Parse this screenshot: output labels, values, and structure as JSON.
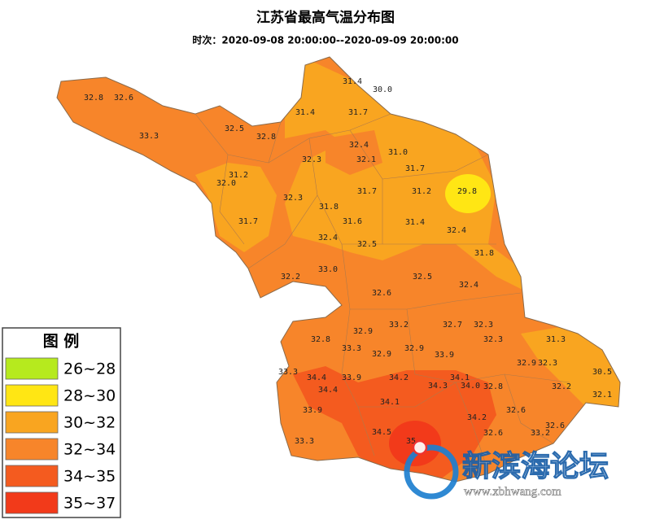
{
  "title": "江苏省最高气温分布图",
  "subtitle": "时次：2020-09-08 20:00:00--2020-09-09 20:00:00",
  "legend": {
    "title": "图 例",
    "items": [
      {
        "label": "26~28",
        "color": "#b6ea1e"
      },
      {
        "label": "28~30",
        "color": "#ffe614"
      },
      {
        "label": "30~32",
        "color": "#f9a520"
      },
      {
        "label": "32~34",
        "color": "#f7852a"
      },
      {
        "label": "34~35",
        "color": "#f45b1f"
      },
      {
        "label": "35~37",
        "color": "#f23a1a"
      }
    ]
  },
  "stations": [
    "32.8",
    "32.6",
    "33.3",
    "32.5",
    "32.8",
    "31.4",
    "30.0",
    "31.4",
    "31.7",
    "32.4",
    "31.0",
    "32.3",
    "32.1",
    "31.2",
    "32.0",
    "31.7",
    "29.8",
    "32.3",
    "31.8",
    "31.7",
    "31.2",
    "31.6",
    "31.4",
    "31.7",
    "32.4",
    "32.4",
    "32.5",
    "31.8",
    "33.0",
    "32.2",
    "32.5",
    "32.4",
    "32.6",
    "33.2",
    "32.7",
    "32.3",
    "32.8",
    "32.9",
    "31.3",
    "33.3",
    "32.3",
    "32.9",
    "32.9",
    "33.9",
    "32.9",
    "32.3",
    "33.3",
    "34.4",
    "33.9",
    "34.2",
    "34.1",
    "34.3",
    "34.0",
    "32.8",
    "32.2",
    "30.5",
    "32.1",
    "34.4",
    "34.1",
    "33.9",
    "32.6",
    "34.2",
    "34.5",
    "32.6",
    "32.6",
    "33.3",
    "35",
    "33.2"
  ],
  "watermark": {
    "name": "新滨海论坛",
    "url": "www.xbhwang.com"
  }
}
